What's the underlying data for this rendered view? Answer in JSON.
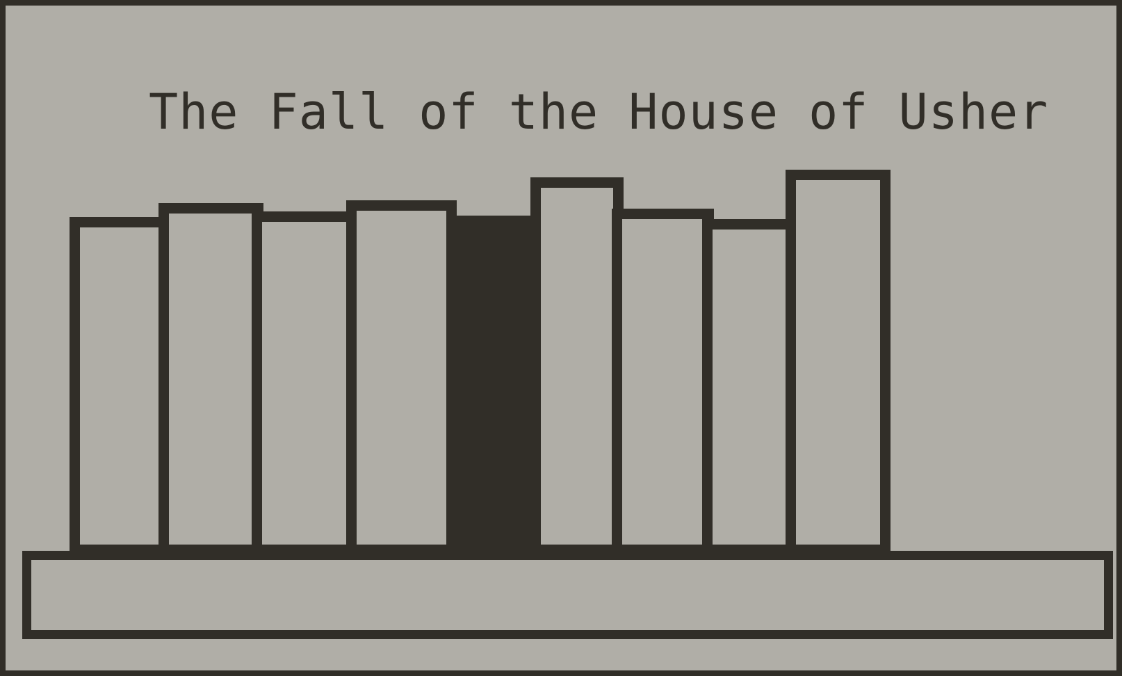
{
  "game": {
    "title": "The Fall of the House of Usher"
  },
  "shelf": {
    "books": [
      {
        "name": "book-1",
        "state": "normal"
      },
      {
        "name": "book-2",
        "state": "normal"
      },
      {
        "name": "book-3",
        "state": "normal"
      },
      {
        "name": "book-4",
        "state": "normal"
      },
      {
        "name": "book-5",
        "state": "dark"
      },
      {
        "name": "book-6",
        "state": "normal"
      },
      {
        "name": "book-7",
        "state": "normal"
      },
      {
        "name": "book-8",
        "state": "normal"
      },
      {
        "name": "book-9",
        "state": "normal"
      }
    ]
  },
  "colors": {
    "background": "#b0aea7",
    "ink": "#312e28"
  }
}
